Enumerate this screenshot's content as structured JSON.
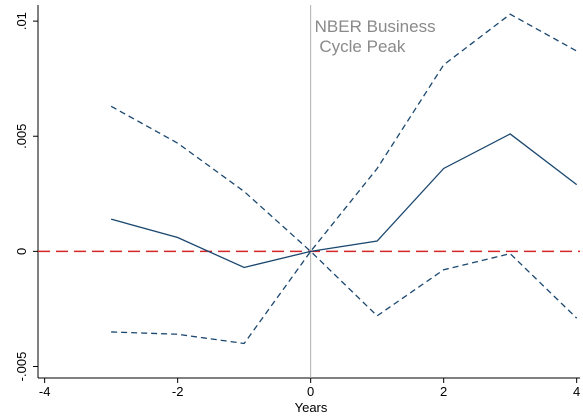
{
  "chart_data": {
    "type": "line",
    "x": [
      -3,
      -2,
      -1,
      0,
      1,
      2,
      3,
      4
    ],
    "series": [
      {
        "color": "#1a476f",
        "dashed": false,
        "values": [
          0.0014,
          0.0006,
          -0.0007,
          0,
          0.00045,
          0.0036,
          0.0051,
          0.0029
        ]
      },
      {
        "color": "#1a476f",
        "dashed": true,
        "values": [
          0.0063,
          0.0047,
          0.0026,
          0,
          0.0036,
          0.0081,
          0.0103,
          0.0087
        ]
      },
      {
        "color": "#1a476f",
        "dashed": true,
        "values": [
          -0.0035,
          -0.0036,
          -0.004,
          0,
          -0.0028,
          -0.0008,
          -0.0001,
          -0.0029
        ]
      }
    ],
    "xlabel": "Years",
    "xlim": [
      -4.1,
      4.05
    ],
    "xticks": [
      -4,
      -2,
      0,
      2,
      4
    ],
    "ylim": [
      -0.0055,
      0.0107
    ],
    "yticks": [
      {
        "value": -0.005,
        "label": "-.005"
      },
      {
        "value": 0,
        "label": "0"
      },
      {
        "value": 0.005,
        "label": ".005"
      },
      {
        "value": 0.01,
        "label": ".01"
      }
    ],
    "hline": {
      "value": 0,
      "color": "#d62728"
    },
    "vline": {
      "value": 0,
      "color": "#b0b0b0"
    },
    "annotation": [
      "NBER Business",
      " Cycle Peak"
    ]
  }
}
